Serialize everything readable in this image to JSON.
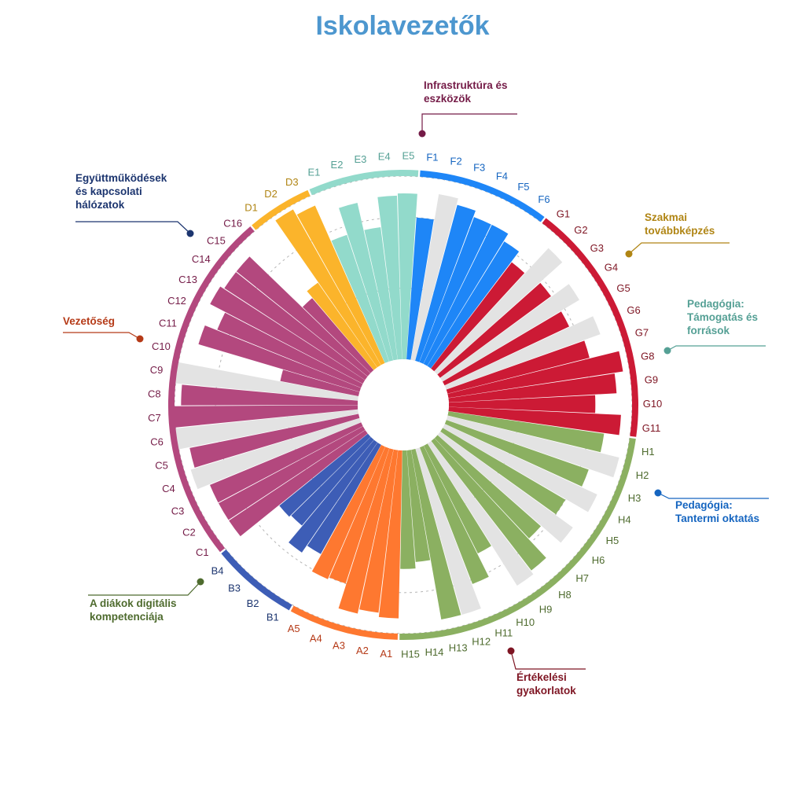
{
  "chart_data": {
    "type": "radial-bar",
    "title": "Iskolavezetők",
    "ylim": [
      0,
      1
    ],
    "bar_colors": {
      "A": "#fe7830",
      "B": "#3d5db6",
      "C": "#b3487e",
      "D": "#fbb42b",
      "E": "#92dacb",
      "F": "#1e86f7",
      "G": "#cc1a35",
      "H": "#8bb061",
      "neutral": "#e3e3e3"
    },
    "label_colors": {
      "A": "#b53a17",
      "B": "#1c356f",
      "C": "#741b47",
      "D": "#b08514",
      "E": "#55a095",
      "F": "#1565c0",
      "G": "#7e1523",
      "H": "#4e6b2e"
    },
    "categories": [
      {
        "key": "A",
        "name": "Vezetőség"
      },
      {
        "key": "B",
        "name": "Együttműködések és kapcsolati hálózatok"
      },
      {
        "key": "C",
        "name": "Infrastruktúra és eszközök"
      },
      {
        "key": "D",
        "name": "Szakmai továbbképzés"
      },
      {
        "key": "E",
        "name": "Pedagógia: Támogatás és források"
      },
      {
        "key": "F",
        "name": "Pedagógia: Tantermi oktatás"
      },
      {
        "key": "G",
        "name": "Értékelési gyakorlatok"
      },
      {
        "key": "H",
        "name": "A diákok digitális kompetenciája"
      }
    ],
    "category_label_lines": {
      "A": [
        "Vezetőség"
      ],
      "B": [
        "Együttműködések",
        "és kapcsolati",
        "hálózatok"
      ],
      "C": [
        "Infrastruktúra és",
        "eszközök"
      ],
      "D": [
        "Szakmai",
        "továbbképzés"
      ],
      "E": [
        "Pedagógia:",
        "Támogatás és",
        "források"
      ],
      "F": [
        "Pedagógia:",
        "Tantermi oktatás"
      ],
      "G": [
        "Értékelési",
        "gyakorlatok"
      ],
      "H": [
        "A diákok digitális",
        "kompetenciája"
      ]
    },
    "items": [
      {
        "label": "A1",
        "cat": "A",
        "value": 0.78
      },
      {
        "label": "A2",
        "cat": "A",
        "value": 0.76
      },
      {
        "label": "A3",
        "cat": "A",
        "value": 0.78
      },
      {
        "label": "A4",
        "cat": "A",
        "value": 0.66
      },
      {
        "label": "A5",
        "cat": "A",
        "value": 0.67
      },
      {
        "label": "B1",
        "cat": "B",
        "value": 0.58
      },
      {
        "label": "B2",
        "cat": "B",
        "value": 0.62
      },
      {
        "label": "B3",
        "cat": "B",
        "value": 0.52
      },
      {
        "label": "B4",
        "cat": "B",
        "value": 0.53
      },
      {
        "label": "C1",
        "cat": "C",
        "value": 0.76
      },
      {
        "label": "C2",
        "cat": "C",
        "value": 0.76
      },
      {
        "label": "C3",
        "cat": "C",
        "value": 0.76
      },
      {
        "label": "C4",
        "cat": "C",
        "value": 0.82,
        "neutral": true
      },
      {
        "label": "C5",
        "cat": "C",
        "value": 0.8
      },
      {
        "label": "C6",
        "cat": "C",
        "value": 0.86,
        "neutral": true
      },
      {
        "label": "C7",
        "cat": "C",
        "value": 0.86
      },
      {
        "label": "C8",
        "cat": "C",
        "value": 0.82
      },
      {
        "label": "C9",
        "cat": "C",
        "value": 0.86,
        "neutral": true
      },
      {
        "label": "C10",
        "cat": "C",
        "value": 0.37
      },
      {
        "label": "C11",
        "cat": "C",
        "value": 0.78
      },
      {
        "label": "C12",
        "cat": "C",
        "value": 0.72
      },
      {
        "label": "C13",
        "cat": "C",
        "value": 0.8
      },
      {
        "label": "C14",
        "cat": "C",
        "value": 0.78
      },
      {
        "label": "C15",
        "cat": "C",
        "value": 0.78
      },
      {
        "label": "C16",
        "cat": "C",
        "value": 0.44
      },
      {
        "label": "D1",
        "cat": "D",
        "value": 0.48
      },
      {
        "label": "D2",
        "cat": "D",
        "value": 0.83
      },
      {
        "label": "D3",
        "cat": "D",
        "value": 0.8
      },
      {
        "label": "E1",
        "cat": "E",
        "value": 0.62
      },
      {
        "label": "E2",
        "cat": "E",
        "value": 0.75
      },
      {
        "label": "E3",
        "cat": "E",
        "value": 0.62
      },
      {
        "label": "E4",
        "cat": "E",
        "value": 0.76
      },
      {
        "label": "E5",
        "cat": "E",
        "value": 0.77
      },
      {
        "label": "F1",
        "cat": "F",
        "value": 0.66
      },
      {
        "label": "F2",
        "cat": "F",
        "value": 0.78,
        "neutral": true
      },
      {
        "label": "F3",
        "cat": "F",
        "value": 0.75
      },
      {
        "label": "F4",
        "cat": "F",
        "value": 0.72
      },
      {
        "label": "F5",
        "cat": "F",
        "value": 0.72
      },
      {
        "label": "F6",
        "cat": "F",
        "value": 0.68
      },
      {
        "label": "G1",
        "cat": "G",
        "value": 0.62
      },
      {
        "label": "G2",
        "cat": "G",
        "value": 0.78,
        "neutral": true
      },
      {
        "label": "G3",
        "cat": "G",
        "value": 0.64
      },
      {
        "label": "G4",
        "cat": "G",
        "value": 0.74,
        "neutral": true
      },
      {
        "label": "G5",
        "cat": "G",
        "value": 0.64
      },
      {
        "label": "G6",
        "cat": "G",
        "value": 0.76,
        "neutral": true
      },
      {
        "label": "G7",
        "cat": "G",
        "value": 0.68
      },
      {
        "label": "G8",
        "cat": "G",
        "value": 0.82
      },
      {
        "label": "G9",
        "cat": "G",
        "value": 0.78
      },
      {
        "label": "G10",
        "cat": "G",
        "value": 0.68
      },
      {
        "label": "G11",
        "cat": "G",
        "value": 0.8
      },
      {
        "label": "H1",
        "cat": "H",
        "value": 0.73
      },
      {
        "label": "H2",
        "cat": "H",
        "value": 0.82,
        "neutral": true
      },
      {
        "label": "H3",
        "cat": "H",
        "value": 0.7
      },
      {
        "label": "H4",
        "cat": "H",
        "value": 0.78,
        "neutral": true
      },
      {
        "label": "H5",
        "cat": "H",
        "value": 0.66
      },
      {
        "label": "H6",
        "cat": "H",
        "value": 0.76,
        "neutral": true
      },
      {
        "label": "H7",
        "cat": "H",
        "value": 0.64
      },
      {
        "label": "H8",
        "cat": "H",
        "value": 0.76
      },
      {
        "label": "H9",
        "cat": "H",
        "value": 0.78,
        "neutral": true
      },
      {
        "label": "H10",
        "cat": "H",
        "value": 0.56
      },
      {
        "label": "H11",
        "cat": "H",
        "value": 0.68
      },
      {
        "label": "H12",
        "cat": "H",
        "value": 0.8,
        "neutral": true
      },
      {
        "label": "H13",
        "cat": "H",
        "value": 0.8
      },
      {
        "label": "H14",
        "cat": "H",
        "value": 0.52
      },
      {
        "label": "H15",
        "cat": "H",
        "value": 0.55
      }
    ]
  }
}
